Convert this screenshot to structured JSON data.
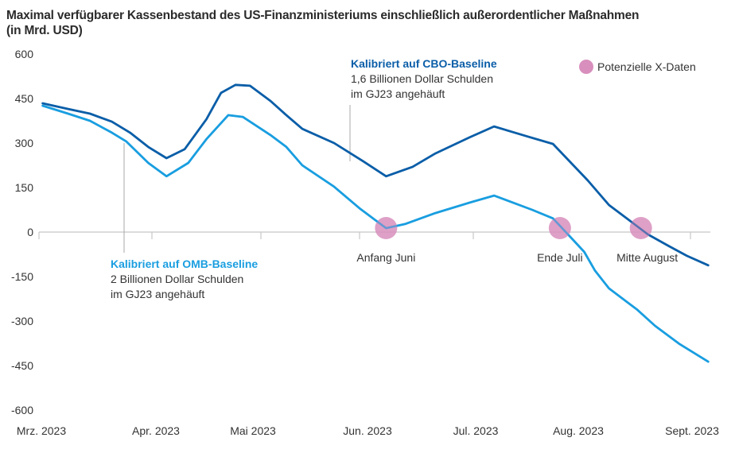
{
  "chart_data": {
    "type": "line",
    "title": "Maximal verfügbarer Kassenbestand des US-Finanzministeriums einschließlich außerordentlicher Maßnahmen",
    "subtitle": "(in Mrd. USD)",
    "xlabel": "",
    "ylabel": "",
    "ylim": [
      -600,
      600
    ],
    "yticks": [
      600,
      450,
      300,
      150,
      0,
      -150,
      -300,
      -450,
      -600
    ],
    "ytick_labels": [
      "600",
      "450",
      "300",
      "150",
      "0",
      "-150",
      "-300",
      "-450",
      "-600"
    ],
    "xticks": [
      {
        "date": "2023-03-01",
        "label": "Mrz. 2023"
      },
      {
        "date": "2023-04-01",
        "label": "Apr. 2023"
      },
      {
        "date": "2023-05-01",
        "label": "Mai 2023"
      },
      {
        "date": "2023-06-01",
        "label": "Jun. 2023"
      },
      {
        "date": "2023-07-01",
        "label": "Jul. 2023"
      },
      {
        "date": "2023-08-01",
        "label": "Aug. 2023"
      },
      {
        "date": "2023-09-01",
        "label": "Sept. 2023"
      }
    ],
    "grid": false,
    "series": [
      {
        "name": "Kalibriert auf CBO-Baseline",
        "color": "#0b5ea8",
        "points": [
          [
            "2023-03-02",
            434
          ],
          [
            "2023-03-09",
            415
          ],
          [
            "2023-03-15",
            399
          ],
          [
            "2023-03-21",
            372
          ],
          [
            "2023-03-26",
            335
          ],
          [
            "2023-03-31",
            287
          ],
          [
            "2023-04-05",
            249
          ],
          [
            "2023-04-10",
            279
          ],
          [
            "2023-04-16",
            380
          ],
          [
            "2023-04-20",
            469
          ],
          [
            "2023-04-24",
            496
          ],
          [
            "2023-04-28",
            493
          ],
          [
            "2023-05-04",
            442
          ],
          [
            "2023-05-09",
            394
          ],
          [
            "2023-05-14",
            348
          ],
          [
            "2023-05-24",
            300
          ],
          [
            "2023-06-02",
            238
          ],
          [
            "2023-06-08",
            188
          ],
          [
            "2023-06-15",
            220
          ],
          [
            "2023-06-21",
            265
          ],
          [
            "2023-06-30",
            319
          ],
          [
            "2023-07-07",
            356
          ],
          [
            "2023-07-17",
            321
          ],
          [
            "2023-07-24",
            297
          ],
          [
            "2023-08-03",
            174
          ],
          [
            "2023-08-09",
            91
          ],
          [
            "2023-08-14",
            46
          ],
          [
            "2023-08-20",
            -8
          ],
          [
            "2023-08-26",
            -48
          ],
          [
            "2023-08-31",
            -80
          ],
          [
            "2023-09-06",
            -112
          ]
        ]
      },
      {
        "name": "Kalibriert auf OMB-Baseline",
        "color": "#1a9ee0",
        "points": [
          [
            "2023-03-02",
            426
          ],
          [
            "2023-03-09",
            399
          ],
          [
            "2023-03-15",
            375
          ],
          [
            "2023-03-21",
            335
          ],
          [
            "2023-03-25",
            305
          ],
          [
            "2023-03-31",
            233
          ],
          [
            "2023-04-05",
            188
          ],
          [
            "2023-04-11",
            233
          ],
          [
            "2023-04-16",
            313
          ],
          [
            "2023-04-22",
            394
          ],
          [
            "2023-04-26",
            388
          ],
          [
            "2023-05-04",
            327
          ],
          [
            "2023-05-09",
            287
          ],
          [
            "2023-05-14",
            225
          ],
          [
            "2023-05-24",
            153
          ],
          [
            "2023-06-01",
            80
          ],
          [
            "2023-06-08",
            13
          ],
          [
            "2023-06-13",
            27
          ],
          [
            "2023-06-21",
            64
          ],
          [
            "2023-06-30",
            99
          ],
          [
            "2023-07-07",
            123
          ],
          [
            "2023-07-18",
            75
          ],
          [
            "2023-07-24",
            46
          ],
          [
            "2023-07-29",
            -16
          ],
          [
            "2023-08-02",
            -67
          ],
          [
            "2023-08-05",
            -129
          ],
          [
            "2023-08-09",
            -190
          ],
          [
            "2023-08-17",
            -262
          ],
          [
            "2023-08-22",
            -316
          ],
          [
            "2023-08-29",
            -378
          ],
          [
            "2023-09-06",
            -437
          ]
        ]
      }
    ],
    "x_dates": {
      "legend_label": "Potenzielle X-Daten",
      "color": "#d88fbd",
      "points": [
        {
          "date": "2023-06-08",
          "value": 13,
          "label": "Anfang Juni"
        },
        {
          "date": "2023-07-26",
          "value": 13,
          "label": "Ende Juli"
        },
        {
          "date": "2023-08-18",
          "value": 13,
          "label": "Mitte August"
        }
      ]
    },
    "annotations": [
      {
        "series": "Kalibriert auf CBO-Baseline",
        "title": "Kalibriert auf CBO-Baseline",
        "lines": [
          "1,6 Billionen Dollar Schulden",
          "im GJ23 angehäuft"
        ],
        "anchor_date": "2023-05-29"
      },
      {
        "series": "Kalibriert auf OMB-Baseline",
        "title": "Kalibriert auf OMB-Baseline",
        "lines": [
          "2 Billionen Dollar Schulden",
          "im GJ23 angehäuft"
        ],
        "anchor_date": "2023-03-24"
      }
    ],
    "legend_position": "top-right"
  }
}
